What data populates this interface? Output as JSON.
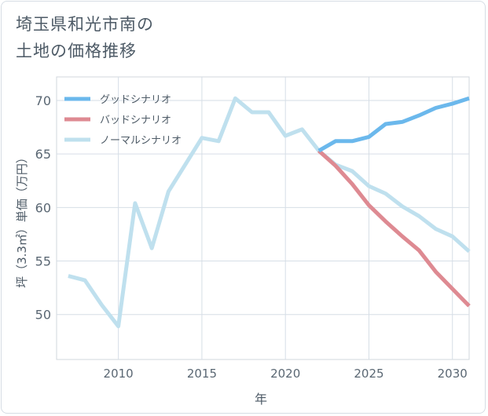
{
  "title_lines": [
    "埼玉県和光市南の",
    "土地の価格推移"
  ],
  "chart_data": {
    "type": "line",
    "xlabel": "年",
    "ylabel": "坪（3.3㎡）単価（万円）",
    "xlim": [
      2006.3,
      2031.0
    ],
    "ylim": [
      45.8,
      72.2
    ],
    "xticks": [
      2010,
      2015,
      2020,
      2025,
      2030
    ],
    "yticks": [
      50,
      55,
      60,
      65,
      70
    ],
    "grid": true,
    "legend_position": "top-left",
    "series": [
      {
        "name": "グッドシナリオ",
        "color": "#6bb8ec",
        "x": [
          2022,
          2023,
          2024,
          2025,
          2026,
          2027,
          2028,
          2029,
          2030,
          2031
        ],
        "y": [
          65.3,
          66.2,
          66.2,
          66.6,
          67.8,
          68.0,
          68.6,
          69.3,
          69.7,
          70.2
        ]
      },
      {
        "name": "バッドシナリオ",
        "color": "#de8a92",
        "x": [
          2022,
          2023,
          2024,
          2025,
          2026,
          2027,
          2028,
          2029,
          2030,
          2031
        ],
        "y": [
          65.3,
          63.9,
          62.2,
          60.2,
          58.7,
          57.3,
          56.0,
          54.0,
          52.4,
          50.8
        ]
      },
      {
        "name": "ノーマルシナリオ",
        "color": "#bfe0ee",
        "x": [
          2007,
          2008,
          2009,
          2010,
          2011,
          2012,
          2013,
          2014,
          2015,
          2016,
          2017,
          2018,
          2019,
          2020,
          2021,
          2022,
          2023,
          2024,
          2025,
          2026,
          2027,
          2028,
          2029,
          2030,
          2031
        ],
        "y": [
          53.6,
          53.2,
          50.9,
          48.9,
          60.4,
          56.2,
          61.5,
          64.0,
          66.5,
          66.2,
          70.2,
          68.9,
          68.9,
          66.7,
          67.3,
          65.3,
          64.0,
          63.4,
          62.0,
          61.3,
          60.1,
          59.2,
          58.0,
          57.3,
          55.9
        ]
      }
    ]
  }
}
